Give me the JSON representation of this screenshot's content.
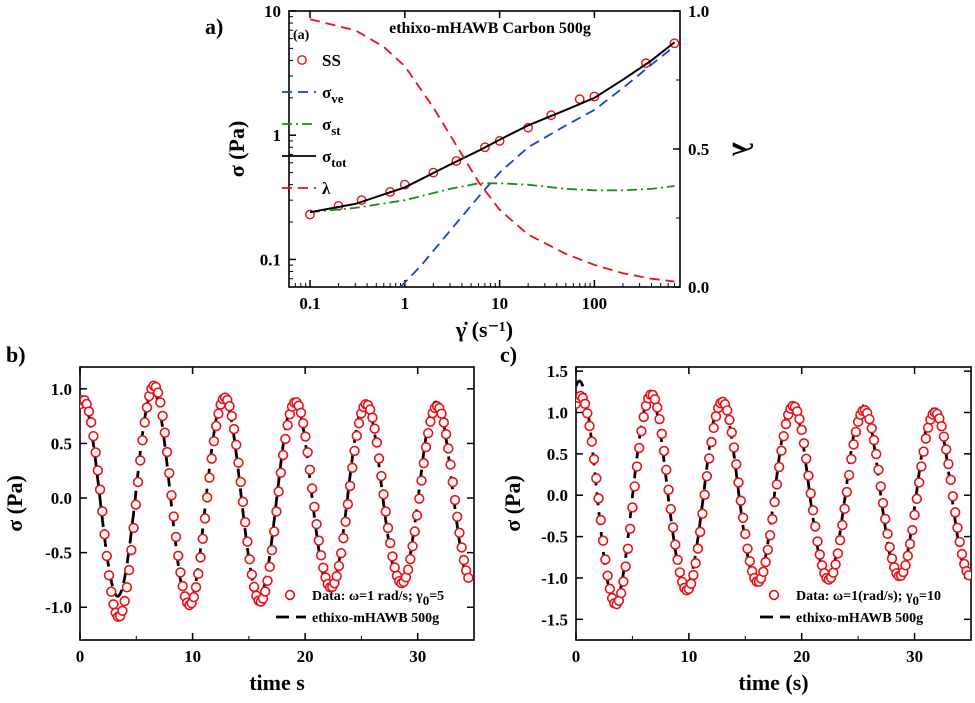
{
  "chart_data": [
    {
      "panel": "a)",
      "type": "line",
      "inner_label": "(a)",
      "title": "ethixo-mHAWB Carbon 500g",
      "xlabel": "γ̇ (s⁻¹)",
      "ylabel": "σ (Pa)",
      "ylabel_right": "λ",
      "xscale": "log",
      "yscale": "log",
      "xlim": [
        0.06,
        800
      ],
      "ylim": [
        0.06,
        10
      ],
      "ylim_right": [
        0.0,
        1.0
      ],
      "xticks": [
        "0.1",
        "1",
        "10",
        "100"
      ],
      "yticks": [
        "0.1",
        "1",
        "10"
      ],
      "yticks_right": [
        "0.0",
        "0.5",
        "1.0"
      ],
      "grid": false,
      "legend_position": "top-left",
      "legend": [
        {
          "key": "SS",
          "label": "SS",
          "sub": "",
          "style": "circle",
          "color": "#e8111a"
        },
        {
          "key": "sve",
          "label": "σ",
          "sub": "ve",
          "style": "dashed",
          "color": "#1a3fd6"
        },
        {
          "key": "sst",
          "label": "σ",
          "sub": "st",
          "style": "dashdot",
          "color": "#1e8a1e"
        },
        {
          "key": "stot",
          "label": "σ",
          "sub": "tot",
          "style": "solid",
          "color": "#000000"
        },
        {
          "key": "lam",
          "label": "λ",
          "sub": "",
          "style": "dashed",
          "color": "#e8111a"
        }
      ],
      "series": [
        {
          "key": "SS",
          "axis": "left",
          "x": [
            0.1,
            0.2,
            0.35,
            0.7,
            1.0,
            2.0,
            3.5,
            7.0,
            10.0,
            20.0,
            35.0,
            70.0,
            100.0,
            350.0,
            700.0
          ],
          "y": [
            0.23,
            0.27,
            0.3,
            0.35,
            0.4,
            0.5,
            0.62,
            0.8,
            0.9,
            1.15,
            1.45,
            1.95,
            2.05,
            3.8,
            5.5
          ]
        },
        {
          "key": "sve",
          "axis": "left",
          "x": [
            0.9,
            1.5,
            3.0,
            6.0,
            10.0,
            20.0,
            50.0,
            100.0,
            200.0,
            400.0,
            700.0
          ],
          "y": [
            0.06,
            0.09,
            0.17,
            0.32,
            0.5,
            0.8,
            1.2,
            1.6,
            2.4,
            3.7,
            5.2
          ]
        },
        {
          "key": "sst",
          "axis": "left",
          "x": [
            0.1,
            0.3,
            1.0,
            3.0,
            6.0,
            10.0,
            20.0,
            50.0,
            100.0,
            200.0,
            400.0,
            700.0
          ],
          "y": [
            0.24,
            0.26,
            0.3,
            0.37,
            0.41,
            0.41,
            0.4,
            0.37,
            0.36,
            0.36,
            0.37,
            0.39
          ]
        },
        {
          "key": "stot",
          "axis": "left",
          "x": [
            0.1,
            0.3,
            1.0,
            3.0,
            6.0,
            10.0,
            20.0,
            50.0,
            100.0,
            200.0,
            400.0,
            700.0
          ],
          "y": [
            0.24,
            0.28,
            0.38,
            0.58,
            0.75,
            0.92,
            1.2,
            1.6,
            2.0,
            2.8,
            4.0,
            5.6
          ]
        },
        {
          "key": "lam",
          "axis": "right",
          "x": [
            0.1,
            0.3,
            0.6,
            1.0,
            2.0,
            4.0,
            6.0,
            10.0,
            20.0,
            50.0,
            100.0,
            200.0,
            400.0,
            700.0
          ],
          "y": [
            0.97,
            0.93,
            0.87,
            0.8,
            0.65,
            0.48,
            0.38,
            0.28,
            0.19,
            0.12,
            0.08,
            0.05,
            0.03,
            0.02
          ]
        }
      ]
    },
    {
      "panel": "b)",
      "type": "line",
      "xlabel": "time s",
      "ylabel": "σ (Pa)",
      "xlim": [
        0,
        35
      ],
      "ylim": [
        -1.3,
        1.2
      ],
      "xticks": [
        "0",
        "10",
        "20",
        "30"
      ],
      "yticks": [
        "-1.0",
        "-0.5",
        "0.0",
        "0.5",
        "1.0"
      ],
      "grid": false,
      "legend_position": "bottom-right",
      "legend": [
        {
          "key": "data",
          "label": "Data: ω=1 rad/s; γ",
          "sub": "0",
          "suffix": "=5",
          "style": "circle",
          "color": "#e8111a"
        },
        {
          "key": "model",
          "label": "ethixo-mHAWB 500g",
          "sub": "",
          "suffix": "",
          "style": "dashed",
          "color": "#000000"
        }
      ],
      "series": [
        {
          "key": "data",
          "omega": 1.0,
          "phase": 0.3,
          "peaks": [
            0.9,
            1.03,
            0.92,
            0.88,
            0.86,
            0.84
          ],
          "troughs": [
            -1.09,
            -0.98,
            -0.95,
            -0.82,
            -0.78
          ],
          "t_start": 0.0,
          "t_end": 34.5,
          "n_points": 175
        },
        {
          "key": "model",
          "omega": 1.0,
          "phase": 0.2,
          "peaks": [
            0.9,
            0.98,
            0.92,
            0.9,
            0.89,
            0.88
          ],
          "troughs": [
            -0.9,
            -0.98,
            -0.9,
            -0.85,
            -0.8
          ],
          "t_start": 0.0,
          "t_end": 34.5
        }
      ]
    },
    {
      "panel": "c)",
      "type": "line",
      "xlabel": "time (s)",
      "ylabel": "σ (Pa)",
      "xlim": [
        0,
        35
      ],
      "ylim": [
        -1.75,
        1.55
      ],
      "xticks": [
        "0",
        "10",
        "20",
        "30"
      ],
      "yticks": [
        "-1.5",
        "-1.0",
        "-0.5",
        "0.0",
        "0.5",
        "1.0",
        "1.5"
      ],
      "grid": false,
      "legend_position": "bottom-right",
      "legend": [
        {
          "key": "data",
          "label": "Data: ω=1(rad/s); γ",
          "sub": "0",
          "suffix": "=10",
          "style": "circle",
          "color": "#e8111a"
        },
        {
          "key": "model",
          "label": "ethixo-mHAWB 500g",
          "sub": "",
          "suffix": "",
          "style": "dashed",
          "color": "#000000"
        }
      ],
      "series": [
        {
          "key": "data",
          "omega": 1.0,
          "phase": 0.4,
          "peaks": [
            1.2,
            1.22,
            1.13,
            1.08,
            1.03,
            1.0
          ],
          "troughs": [
            -1.32,
            -1.15,
            -1.05,
            -1.02,
            -0.98
          ],
          "t_start": 0.0,
          "t_end": 34.8,
          "n_points": 175
        },
        {
          "key": "model",
          "omega": 1.0,
          "phase": 0.3,
          "peaks": [
            1.38,
            1.2,
            1.15,
            1.1,
            1.08,
            1.05
          ],
          "troughs": [
            -1.3,
            -1.1,
            -1.05,
            -1.0,
            -1.0
          ],
          "t_start": 0.0,
          "t_end": 34.8
        }
      ]
    }
  ]
}
